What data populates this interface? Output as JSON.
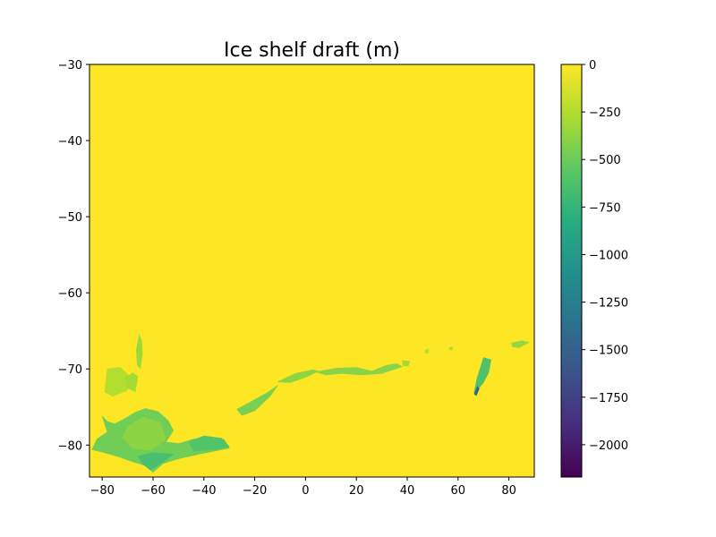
{
  "chart_data": {
    "type": "heatmap",
    "title": "Ice shelf draft (m)",
    "xlabel": "",
    "ylabel": "",
    "xlim": [
      -85,
      90
    ],
    "ylim": [
      -84.2,
      -30
    ],
    "xticks": [
      {
        "value": -80,
        "label": "−80"
      },
      {
        "value": -60,
        "label": "−60"
      },
      {
        "value": -40,
        "label": "−40"
      },
      {
        "value": -20,
        "label": "−20"
      },
      {
        "value": 0,
        "label": "0"
      },
      {
        "value": 20,
        "label": "20"
      },
      {
        "value": 40,
        "label": "40"
      },
      {
        "value": 60,
        "label": "60"
      },
      {
        "value": 80,
        "label": "80"
      }
    ],
    "yticks": [
      {
        "value": -30,
        "label": "−30"
      },
      {
        "value": -40,
        "label": "−40"
      },
      {
        "value": -50,
        "label": "−50"
      },
      {
        "value": -60,
        "label": "−60"
      },
      {
        "value": -70,
        "label": "−70"
      },
      {
        "value": -80,
        "label": "−80"
      }
    ],
    "background_value": 0,
    "colorbar": {
      "colormap": "viridis",
      "vmin": -2170,
      "vmax": 0,
      "ticks": [
        {
          "value": 0,
          "label": "0"
        },
        {
          "value": -250,
          "label": "−250"
        },
        {
          "value": -500,
          "label": "−500"
        },
        {
          "value": -750,
          "label": "−750"
        },
        {
          "value": -1000,
          "label": "−1000"
        },
        {
          "value": -1250,
          "label": "−1250"
        },
        {
          "value": -1500,
          "label": "−1500"
        },
        {
          "value": -1750,
          "label": "−1750"
        },
        {
          "value": -2000,
          "label": "−2000"
        }
      ]
    },
    "regions": [
      {
        "name": "weddell-ice-shelf",
        "value": -480,
        "points": [
          [
            -80,
            -76.2
          ],
          [
            -78,
            -76.9
          ],
          [
            -75,
            -77.2
          ],
          [
            -71,
            -76.5
          ],
          [
            -67,
            -75.7
          ],
          [
            -63,
            -75.2
          ],
          [
            -58,
            -75.6
          ],
          [
            -54,
            -76.8
          ],
          [
            -52,
            -78.1
          ],
          [
            -55,
            -79.6
          ],
          [
            -50,
            -79.8
          ],
          [
            -44,
            -79.2
          ],
          [
            -38,
            -78.9
          ],
          [
            -32,
            -79.3
          ],
          [
            -30,
            -80.4
          ],
          [
            -36,
            -80.8
          ],
          [
            -42,
            -81.2
          ],
          [
            -50,
            -81.8
          ],
          [
            -56,
            -82.4
          ],
          [
            -60,
            -83.6
          ],
          [
            -63,
            -82.7
          ],
          [
            -68,
            -82.2
          ],
          [
            -73,
            -81.6
          ],
          [
            -78,
            -81.1
          ],
          [
            -84,
            -80.6
          ],
          [
            -82,
            -79.2
          ],
          [
            -78,
            -78.3
          ]
        ]
      },
      {
        "name": "weddell-inner-shelf",
        "value": -380,
        "points": [
          [
            -70,
            -77.6
          ],
          [
            -64,
            -76.3
          ],
          [
            -57,
            -77.1
          ],
          [
            -55,
            -79.3
          ],
          [
            -61,
            -80.7
          ],
          [
            -68,
            -80.4
          ],
          [
            -72,
            -79.1
          ]
        ]
      },
      {
        "name": "weddell-south-shelf",
        "value": -650,
        "points": [
          [
            -66,
            -81.5
          ],
          [
            -60,
            -81.0
          ],
          [
            -52,
            -81.2
          ],
          [
            -56,
            -82.2
          ],
          [
            -61,
            -83.3
          ],
          [
            -64,
            -82.5
          ]
        ]
      },
      {
        "name": "weddell-east-lobe",
        "value": -600,
        "points": [
          [
            -46,
            -79.6
          ],
          [
            -40,
            -78.8
          ],
          [
            -33,
            -79.1
          ],
          [
            -30,
            -80.2
          ],
          [
            -36,
            -80.6
          ],
          [
            -44,
            -80.8
          ]
        ]
      },
      {
        "name": "amery-ice-shelf",
        "value": -620,
        "points": [
          [
            70,
            -68.5
          ],
          [
            73,
            -68.8
          ],
          [
            72,
            -70.5
          ],
          [
            70,
            -71.8
          ],
          [
            68,
            -72.6
          ],
          [
            67,
            -73.4
          ],
          [
            66.3,
            -73.1
          ],
          [
            67.5,
            -71.2
          ],
          [
            69,
            -69.6
          ]
        ]
      },
      {
        "name": "amery-deep-tip",
        "value": -1500,
        "points": [
          [
            67.6,
            -72.3
          ],
          [
            68.3,
            -72.6
          ],
          [
            67.2,
            -73.5
          ],
          [
            66.4,
            -73.3
          ]
        ]
      },
      {
        "name": "antarctic-peninsula-shelf",
        "value": -320,
        "points": [
          [
            -65.5,
            -65.5
          ],
          [
            -64.5,
            -66.2
          ],
          [
            -64.2,
            -68
          ],
          [
            -65,
            -70
          ],
          [
            -66.2,
            -69.5
          ],
          [
            -66.6,
            -67.5
          ]
        ]
      },
      {
        "name": "peninsula-west-shelf",
        "value": -250,
        "points": [
          [
            -78,
            -70
          ],
          [
            -73,
            -69.8
          ],
          [
            -69,
            -71
          ],
          [
            -70,
            -72.8
          ],
          [
            -76,
            -73.6
          ],
          [
            -79,
            -73
          ]
        ]
      },
      {
        "name": "peninsula-coastal-shelf",
        "value": -300,
        "points": [
          [
            -71,
            -71.2
          ],
          [
            -68,
            -70.5
          ],
          [
            -66,
            -71
          ],
          [
            -67,
            -73
          ],
          [
            -70,
            -72.5
          ]
        ]
      },
      {
        "name": "riiser-larsen-shelf",
        "value": -450,
        "points": [
          [
            -27,
            -75.3
          ],
          [
            -22,
            -74.4
          ],
          [
            -15,
            -73.1
          ],
          [
            -11,
            -72.2
          ],
          [
            -14,
            -73.6
          ],
          [
            -20,
            -75.5
          ],
          [
            -25,
            -76.1
          ]
        ]
      },
      {
        "name": "fimbul-ice-shelf",
        "value": -380,
        "points": [
          [
            -11,
            -71.7
          ],
          [
            -4,
            -70.6
          ],
          [
            3,
            -70.1
          ],
          [
            5,
            -70.3
          ],
          [
            0,
            -71.1
          ],
          [
            -6,
            -71.8
          ]
        ]
      },
      {
        "name": "dronning-maud-shelves",
        "value": -400,
        "points": [
          [
            4,
            -70.4
          ],
          [
            12,
            -69.9
          ],
          [
            20,
            -69.8
          ],
          [
            26,
            -70.3
          ],
          [
            32,
            -69.5
          ],
          [
            36,
            -69.3
          ],
          [
            38,
            -69.7
          ],
          [
            30,
            -70.6
          ],
          [
            22,
            -70.8
          ],
          [
            14,
            -70.6
          ],
          [
            8,
            -70.8
          ]
        ]
      },
      {
        "name": "shirase-shelf",
        "value": -300,
        "points": [
          [
            38,
            -68.9
          ],
          [
            41,
            -69
          ],
          [
            40.5,
            -69.6
          ],
          [
            38.5,
            -69.6
          ]
        ]
      },
      {
        "name": "west-ice-shelf",
        "value": -350,
        "points": [
          [
            81,
            -66.6
          ],
          [
            85,
            -66.3
          ],
          [
            88,
            -66.5
          ],
          [
            84,
            -67.2
          ],
          [
            81.5,
            -67.1
          ]
        ]
      },
      {
        "name": "enderby-fragment",
        "value": -250,
        "points": [
          [
            47,
            -67.5
          ],
          [
            48.5,
            -67.4
          ],
          [
            48.3,
            -67.9
          ],
          [
            47,
            -67.9
          ]
        ]
      },
      {
        "name": "prydz-fragment",
        "value": -250,
        "points": [
          [
            56.5,
            -67.2
          ],
          [
            58,
            -67.1
          ],
          [
            57.8,
            -67.5
          ],
          [
            56.6,
            -67.5
          ]
        ]
      }
    ]
  }
}
